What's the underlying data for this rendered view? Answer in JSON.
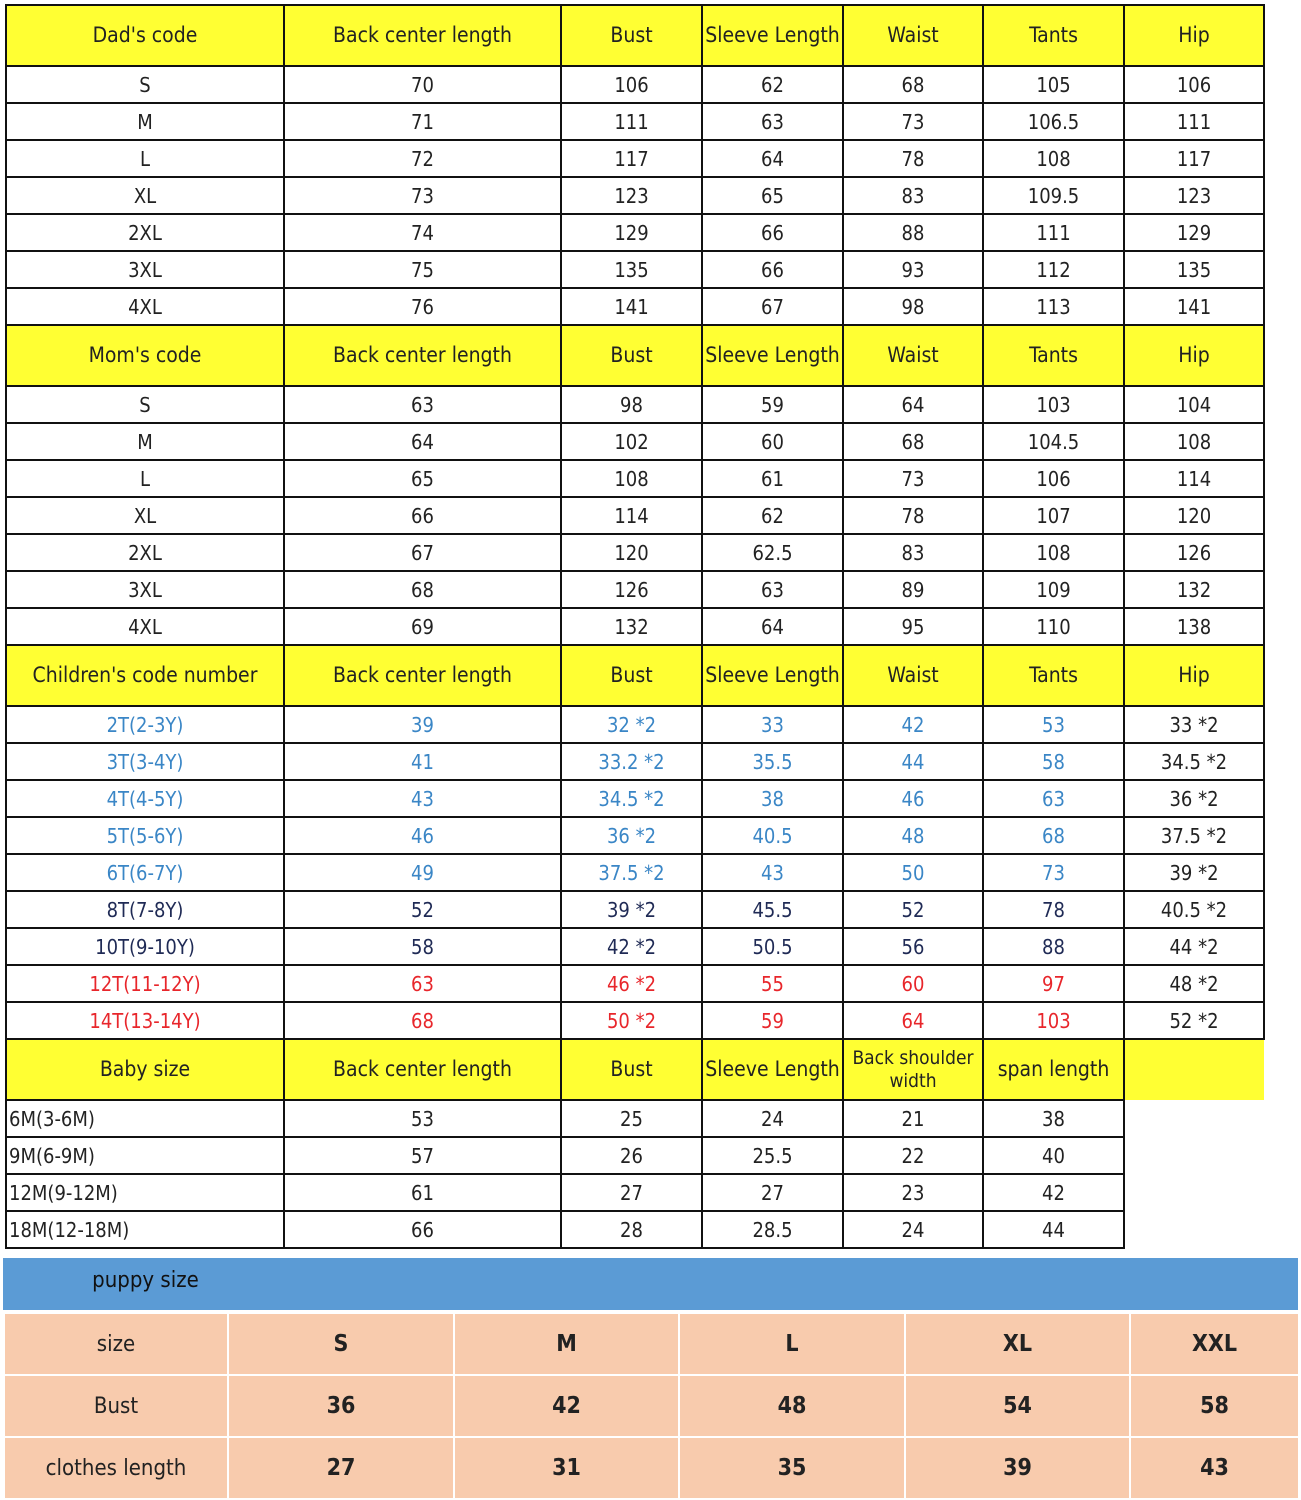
{
  "colors": {
    "header": "#ffff33",
    "blue": "#3a86c6",
    "navy": "#1f2a55",
    "red": "#e8262b",
    "puppy_bar": "#5b9bd5",
    "puppy_table": "#f8cbad"
  },
  "sections": [
    {
      "id": "dad",
      "headers": [
        "Dad's code",
        "Back center length",
        "Bust",
        "Sleeve Length",
        "Waist",
        "Tants",
        "Hip"
      ],
      "rows": [
        {
          "cells": [
            "S",
            "70",
            "106",
            "62",
            "68",
            "105",
            "106"
          ]
        },
        {
          "cells": [
            "M",
            "71",
            "111",
            "63",
            "73",
            "106.5",
            "111"
          ]
        },
        {
          "cells": [
            "L",
            "72",
            "117",
            "64",
            "78",
            "108",
            "117"
          ]
        },
        {
          "cells": [
            "XL",
            "73",
            "123",
            "65",
            "83",
            "109.5",
            "123"
          ]
        },
        {
          "cells": [
            "2XL",
            "74",
            "129",
            "66",
            "88",
            "111",
            "129"
          ]
        },
        {
          "cells": [
            "3XL",
            "75",
            "135",
            "66",
            "93",
            "112",
            "135"
          ]
        },
        {
          "cells": [
            "4XL",
            "76",
            "141",
            "67",
            "98",
            "113",
            "141"
          ]
        }
      ]
    },
    {
      "id": "mom",
      "headers": [
        "Mom's code",
        "Back center length",
        "Bust",
        "Sleeve Length",
        "Waist",
        "Tants",
        "Hip"
      ],
      "rows": [
        {
          "cells": [
            "S",
            "63",
            "98",
            "59",
            "64",
            "103",
            "104"
          ]
        },
        {
          "cells": [
            "M",
            "64",
            "102",
            "60",
            "68",
            "104.5",
            "108"
          ]
        },
        {
          "cells": [
            "L",
            "65",
            "108",
            "61",
            "73",
            "106",
            "114"
          ]
        },
        {
          "cells": [
            "XL",
            "66",
            "114",
            "62",
            "78",
            "107",
            "120"
          ]
        },
        {
          "cells": [
            "2XL",
            "67",
            "120",
            "62.5",
            "83",
            "108",
            "126"
          ]
        },
        {
          "cells": [
            "3XL",
            "68",
            "126",
            "63",
            "89",
            "109",
            "132"
          ]
        },
        {
          "cells": [
            "4XL",
            "69",
            "132",
            "64",
            "95",
            "110",
            "138"
          ]
        }
      ]
    },
    {
      "id": "children",
      "headers": [
        "Children's code number",
        "Back center length",
        "Bust",
        "Sleeve Length",
        "Waist",
        "Tants",
        "Hip"
      ],
      "rows": [
        {
          "color": "blue",
          "cells": [
            "2T(2-3Y)",
            "39",
            "32 *2",
            "33",
            "42",
            "53",
            "33 *2"
          ]
        },
        {
          "color": "blue",
          "cells": [
            "3T(3-4Y)",
            "41",
            "33.2 *2",
            "35.5",
            "44",
            "58",
            "34.5 *2"
          ]
        },
        {
          "color": "blue",
          "cells": [
            "4T(4-5Y)",
            "43",
            "34.5 *2",
            "38",
            "46",
            "63",
            "36 *2"
          ]
        },
        {
          "color": "blue",
          "cells": [
            "5T(5-6Y)",
            "46",
            "36 *2",
            "40.5",
            "48",
            "68",
            "37.5 *2"
          ]
        },
        {
          "color": "blue",
          "cells": [
            "6T(6-7Y)",
            "49",
            "37.5 *2",
            "43",
            "50",
            "73",
            "39 *2"
          ]
        },
        {
          "color": "navy",
          "cells": [
            "8T(7-8Y)",
            "52",
            "39 *2",
            "45.5",
            "52",
            "78",
            "40.5 *2"
          ]
        },
        {
          "color": "navy",
          "cells": [
            "10T(9-10Y)",
            "58",
            "42 *2",
            "50.5",
            "56",
            "88",
            "44 *2"
          ]
        },
        {
          "color": "red",
          "cells": [
            "12T(11-12Y)",
            "63",
            "46 *2",
            "55",
            "60",
            "97",
            "48 *2"
          ]
        },
        {
          "color": "red",
          "cells": [
            "14T(13-14Y)",
            "68",
            "50 *2",
            "59",
            "64",
            "103",
            "52 *2"
          ]
        }
      ]
    },
    {
      "id": "baby",
      "headers": [
        "Baby size",
        "Back center length",
        "Bust",
        "Sleeve Length",
        "Back shoulder width",
        "span length"
      ],
      "rows": [
        {
          "cells": [
            "6M(3-6M)",
            "53",
            "25",
            "24",
            "21",
            "38"
          ]
        },
        {
          "cells": [
            "9M(6-9M)",
            "57",
            "26",
            "25.5",
            "22",
            "40"
          ]
        },
        {
          "cells": [
            "12M(9-12M)",
            "61",
            "27",
            "27",
            "23",
            "42"
          ]
        },
        {
          "cells": [
            "18M(12-18M)",
            "66",
            "28",
            "28.5",
            "24",
            "44"
          ]
        }
      ]
    }
  ],
  "puppy": {
    "title": "puppy size",
    "rows": [
      {
        "label": "size",
        "values": [
          "S",
          "M",
          "L",
          "XL",
          "XXL"
        ]
      },
      {
        "label": "Bust",
        "values": [
          "36",
          "42",
          "48",
          "54",
          "58"
        ]
      },
      {
        "label": "clothes length",
        "values": [
          "27",
          "31",
          "35",
          "39",
          "43"
        ]
      }
    ]
  }
}
